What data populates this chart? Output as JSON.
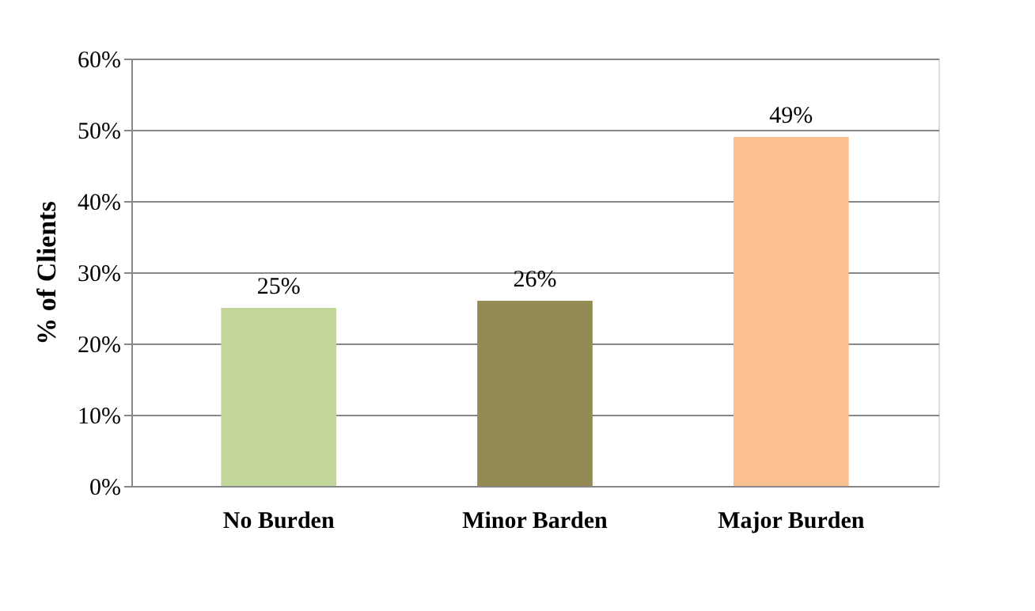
{
  "chart_data": {
    "type": "bar",
    "ylabel": "% of Clients",
    "categories": [
      "No Burden",
      "Minor Barden",
      "Major Burden"
    ],
    "values": [
      25,
      26,
      49
    ],
    "colors": [
      "#c3d69b",
      "#948a54",
      "#fac090"
    ],
    "value_labels": [
      "25%",
      "26%",
      "49%"
    ],
    "ylim": [
      0,
      60
    ],
    "yticks": [
      {
        "value": 0,
        "label": "0%"
      },
      {
        "value": 10,
        "label": "10%"
      },
      {
        "value": 20,
        "label": "20%"
      },
      {
        "value": 30,
        "label": "30%"
      },
      {
        "value": 40,
        "label": "40%"
      },
      {
        "value": 50,
        "label": "50%"
      },
      {
        "value": 60,
        "label": "60%"
      }
    ],
    "grid": "y"
  }
}
